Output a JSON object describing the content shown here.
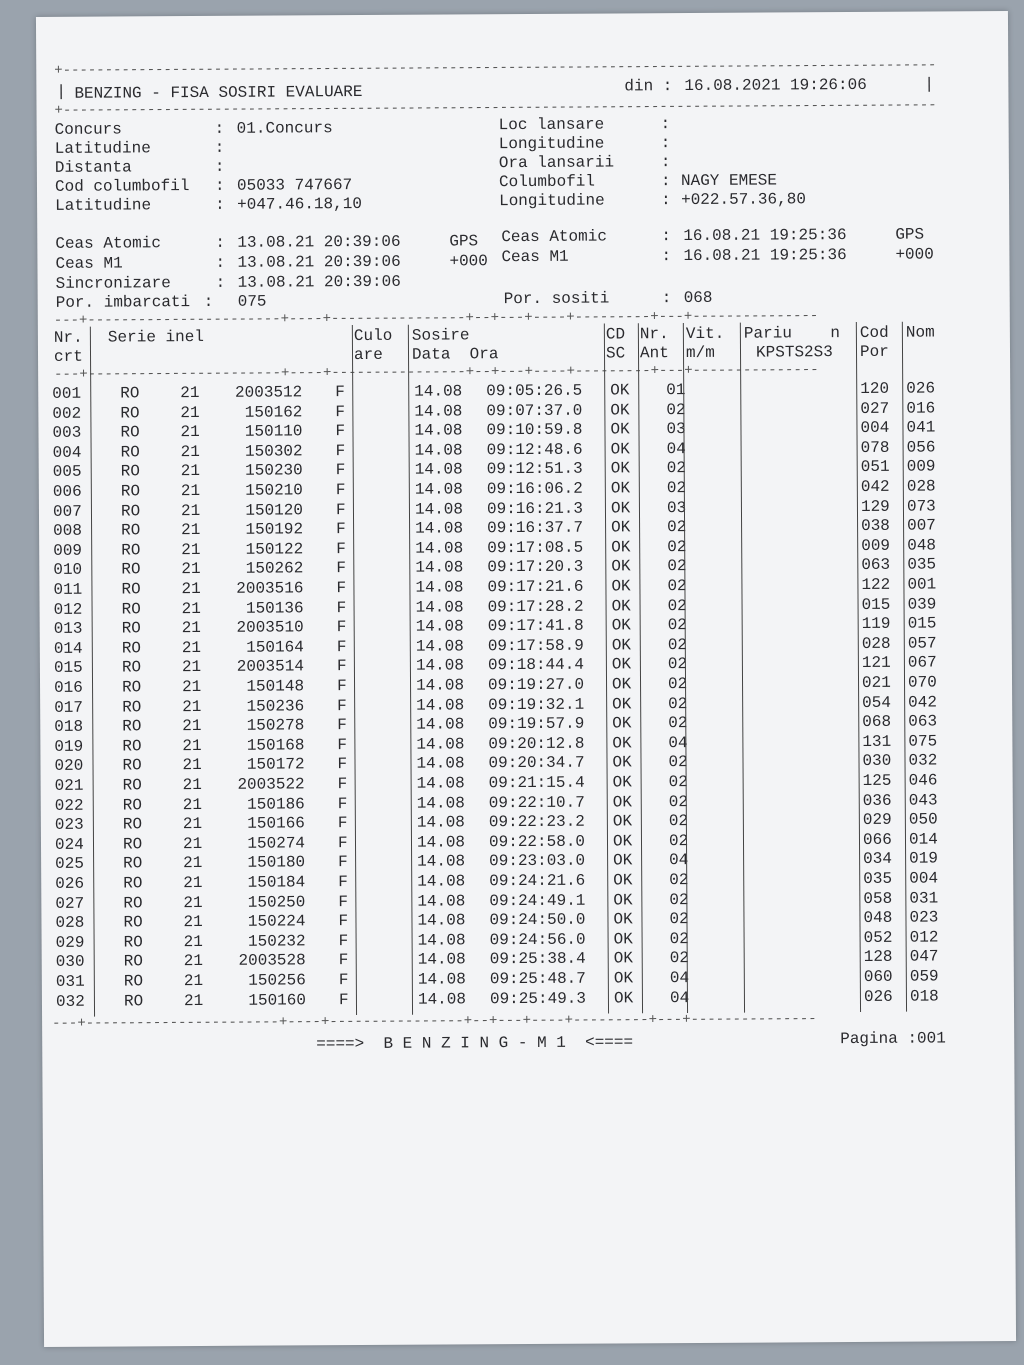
{
  "header": {
    "title": "BENZING - FISA SOSIRI EVALUARE",
    "date_label": "din :",
    "date": "16.08.2021 19:26:06"
  },
  "info_left": [
    {
      "label": "Concurs",
      "value": "01.Concurs"
    },
    {
      "label": "Latitudine",
      "value": ""
    },
    {
      "label": "Distanta",
      "value": ""
    },
    {
      "label": "Cod columbofil",
      "value": "05033 747667"
    },
    {
      "label": "Latitudine",
      "value": "+047.46.18,10"
    }
  ],
  "info_right": [
    {
      "label": "Loc lansare",
      "value": ""
    },
    {
      "label": "Longitudine",
      "value": ""
    },
    {
      "label": "Ora lansarii",
      "value": ""
    },
    {
      "label": "Columbofil",
      "value": "NAGY EMESE"
    },
    {
      "label": "Longitudine",
      "value": "+022.57.36,80"
    }
  ],
  "clocks_left": [
    {
      "label": "Ceas Atomic",
      "value": "13.08.21 20:39:06",
      "suffix": "GPS"
    },
    {
      "label": "Ceas M1",
      "value": "13.08.21 20:39:06",
      "suffix": "+000"
    },
    {
      "label": "Sincronizare",
      "value": "13.08.21 20:39:06",
      "suffix": ""
    }
  ],
  "clocks_right": [
    {
      "label": "Ceas Atomic",
      "value": "16.08.21 19:25:36",
      "suffix": "GPS"
    },
    {
      "label": "Ceas M1",
      "value": "16.08.21 19:25:36",
      "suffix": "+000"
    }
  ],
  "boarded": {
    "label": "Por. imbarcati",
    "value": "075"
  },
  "arrived": {
    "label": "Por. sositi",
    "value": "068"
  },
  "columns": {
    "nr": "Nr.",
    "crt": "crt",
    "serie": "Serie inel",
    "culo": "Culo",
    "are": "are",
    "sosire": "Sosire",
    "data_ora": "Data  Ora",
    "cd": "CD",
    "sc": "SC",
    "nr2": "Nr.",
    "ant": "Ant",
    "vit": "Vit.",
    "mm": "m/m",
    "pariu": "Pariu    n",
    "kpsts": "KPSTS2S3",
    "cod": "Cod",
    "por": "Por",
    "nom": "Nom"
  },
  "rows": [
    [
      "001",
      "RO",
      "21",
      "2003512",
      "F",
      "14.08",
      "09:05:26.5",
      "OK",
      "01",
      "120",
      "026"
    ],
    [
      "002",
      "RO",
      "21",
      "150162",
      "F",
      "14.08",
      "09:07:37.0",
      "OK",
      "02",
      "027",
      "016"
    ],
    [
      "003",
      "RO",
      "21",
      "150110",
      "F",
      "14.08",
      "09:10:59.8",
      "OK",
      "03",
      "004",
      "041"
    ],
    [
      "004",
      "RO",
      "21",
      "150302",
      "F",
      "14.08",
      "09:12:48.6",
      "OK",
      "04",
      "078",
      "056"
    ],
    [
      "005",
      "RO",
      "21",
      "150230",
      "F",
      "14.08",
      "09:12:51.3",
      "OK",
      "02",
      "051",
      "009"
    ],
    [
      "006",
      "RO",
      "21",
      "150210",
      "F",
      "14.08",
      "09:16:06.2",
      "OK",
      "02",
      "042",
      "028"
    ],
    [
      "007",
      "RO",
      "21",
      "150120",
      "F",
      "14.08",
      "09:16:21.3",
      "OK",
      "03",
      "129",
      "073"
    ],
    [
      "008",
      "RO",
      "21",
      "150192",
      "F",
      "14.08",
      "09:16:37.7",
      "OK",
      "02",
      "038",
      "007"
    ],
    [
      "009",
      "RO",
      "21",
      "150122",
      "F",
      "14.08",
      "09:17:08.5",
      "OK",
      "02",
      "009",
      "048"
    ],
    [
      "010",
      "RO",
      "21",
      "150262",
      "F",
      "14.08",
      "09:17:20.3",
      "OK",
      "02",
      "063",
      "035"
    ],
    [
      "011",
      "RO",
      "21",
      "2003516",
      "F",
      "14.08",
      "09:17:21.6",
      "OK",
      "02",
      "122",
      "001"
    ],
    [
      "012",
      "RO",
      "21",
      "150136",
      "F",
      "14.08",
      "09:17:28.2",
      "OK",
      "02",
      "015",
      "039"
    ],
    [
      "013",
      "RO",
      "21",
      "2003510",
      "F",
      "14.08",
      "09:17:41.8",
      "OK",
      "02",
      "119",
      "015"
    ],
    [
      "014",
      "RO",
      "21",
      "150164",
      "F",
      "14.08",
      "09:17:58.9",
      "OK",
      "02",
      "028",
      "057"
    ],
    [
      "015",
      "RO",
      "21",
      "2003514",
      "F",
      "14.08",
      "09:18:44.4",
      "OK",
      "02",
      "121",
      "067"
    ],
    [
      "016",
      "RO",
      "21",
      "150148",
      "F",
      "14.08",
      "09:19:27.0",
      "OK",
      "02",
      "021",
      "070"
    ],
    [
      "017",
      "RO",
      "21",
      "150236",
      "F",
      "14.08",
      "09:19:32.1",
      "OK",
      "02",
      "054",
      "042"
    ],
    [
      "018",
      "RO",
      "21",
      "150278",
      "F",
      "14.08",
      "09:19:57.9",
      "OK",
      "02",
      "068",
      "063"
    ],
    [
      "019",
      "RO",
      "21",
      "150168",
      "F",
      "14.08",
      "09:20:12.8",
      "OK",
      "04",
      "131",
      "075"
    ],
    [
      "020",
      "RO",
      "21",
      "150172",
      "F",
      "14.08",
      "09:20:34.7",
      "OK",
      "02",
      "030",
      "032"
    ],
    [
      "021",
      "RO",
      "21",
      "2003522",
      "F",
      "14.08",
      "09:21:15.4",
      "OK",
      "02",
      "125",
      "046"
    ],
    [
      "022",
      "RO",
      "21",
      "150186",
      "F",
      "14.08",
      "09:22:10.7",
      "OK",
      "02",
      "036",
      "043"
    ],
    [
      "023",
      "RO",
      "21",
      "150166",
      "F",
      "14.08",
      "09:22:23.2",
      "OK",
      "02",
      "029",
      "050"
    ],
    [
      "024",
      "RO",
      "21",
      "150274",
      "F",
      "14.08",
      "09:22:58.0",
      "OK",
      "02",
      "066",
      "014"
    ],
    [
      "025",
      "RO",
      "21",
      "150180",
      "F",
      "14.08",
      "09:23:03.0",
      "OK",
      "04",
      "034",
      "019"
    ],
    [
      "026",
      "RO",
      "21",
      "150184",
      "F",
      "14.08",
      "09:24:21.6",
      "OK",
      "02",
      "035",
      "004"
    ],
    [
      "027",
      "RO",
      "21",
      "150250",
      "F",
      "14.08",
      "09:24:49.1",
      "OK",
      "02",
      "058",
      "031"
    ],
    [
      "028",
      "RO",
      "21",
      "150224",
      "F",
      "14.08",
      "09:24:50.0",
      "OK",
      "02",
      "048",
      "023"
    ],
    [
      "029",
      "RO",
      "21",
      "150232",
      "F",
      "14.08",
      "09:24:56.0",
      "OK",
      "02",
      "052",
      "012"
    ],
    [
      "030",
      "RO",
      "21",
      "2003528",
      "F",
      "14.08",
      "09:25:38.4",
      "OK",
      "02",
      "128",
      "047"
    ],
    [
      "031",
      "RO",
      "21",
      "150256",
      "F",
      "14.08",
      "09:25:48.7",
      "OK",
      "04",
      "060",
      "059"
    ],
    [
      "032",
      "RO",
      "21",
      "150160",
      "F",
      "14.08",
      "09:25:49.3",
      "OK",
      "04",
      "026",
      "018"
    ]
  ],
  "footer": {
    "center": "====>  B E N Z I N G - M 1  <====",
    "page": "Pagina :001"
  }
}
